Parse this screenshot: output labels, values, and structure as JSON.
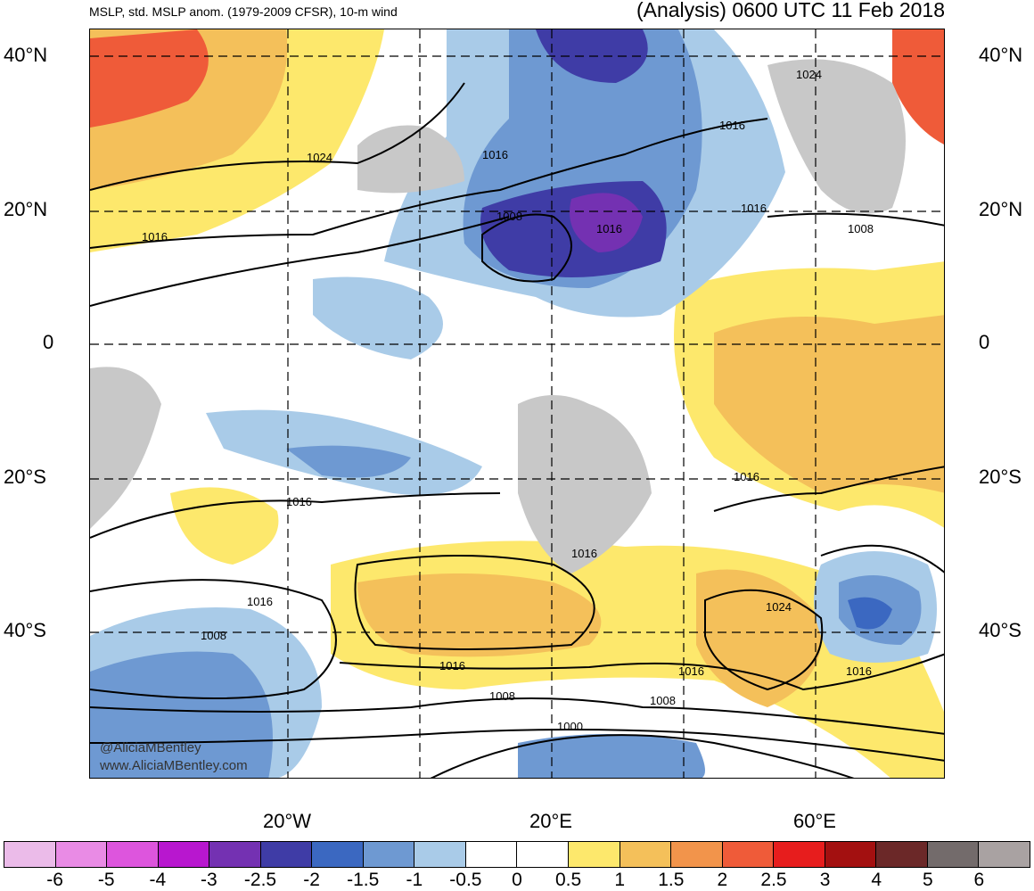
{
  "header": {
    "left": "MSLP, std. MSLP anom. (1979-2009 CFSR), 10-m wind",
    "right": "(Analysis) 0600 UTC 11 Feb 2018"
  },
  "map": {
    "lat_labels": [
      "40°N",
      "20°N",
      "0",
      "20°S",
      "40°S"
    ],
    "lon_labels": [
      "20°W",
      "20°E",
      "60°E"
    ],
    "isobar_labels": [
      "1024",
      "1016",
      "1008",
      "1016",
      "1024",
      "1016",
      "1016",
      "1008",
      "1016",
      "1016",
      "1016",
      "1016",
      "1016",
      "1008",
      "1016",
      "1008",
      "1008",
      "1000",
      "1016",
      "1024",
      "1016"
    ],
    "watermark": [
      "@AliciaMBentley",
      "www.AliciaMBentley.com"
    ]
  },
  "colorbar": {
    "colors": [
      "#ebbbe9",
      "#e98be5",
      "#dd55dd",
      "#b817cf",
      "#7431b2",
      "#3f3ca6",
      "#3b68c1",
      "#6e99d2",
      "#a9cbe8",
      "#ffffff",
      "#ffffff",
      "#fde86c",
      "#f4c05a",
      "#f2944b",
      "#ef5b39",
      "#e71d1d",
      "#a31010",
      "#6b2828",
      "#736b6b",
      "#a9a2a2"
    ],
    "ticks": [
      "-6",
      "-5",
      "-4",
      "-3",
      "-2.5",
      "-2",
      "-1.5",
      "-1",
      "-0.5",
      "0",
      "0.5",
      "1",
      "1.5",
      "2",
      "2.5",
      "3",
      "4",
      "5",
      "6"
    ]
  }
}
